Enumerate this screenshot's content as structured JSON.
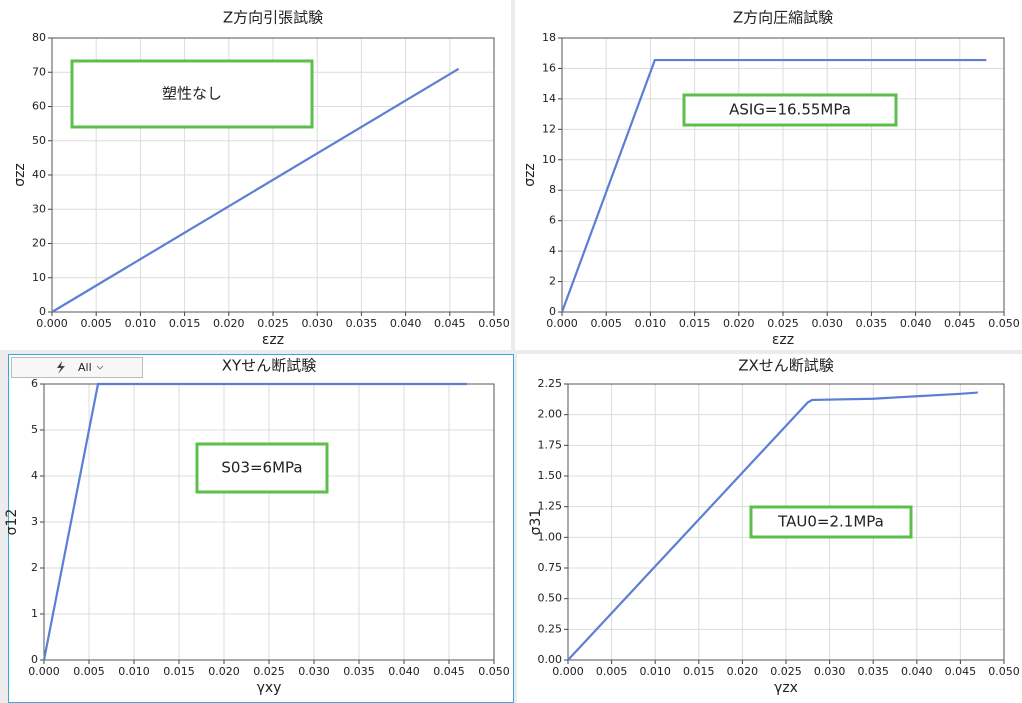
{
  "chart_data": [
    {
      "type": "line",
      "title": "Z方向引張試験",
      "x_label": "εzz",
      "y_label": "σzz",
      "color": "#5b7fd4",
      "grid": true,
      "x": [
        0,
        0.046
      ],
      "values": [
        0,
        71
      ],
      "xlim": [
        0,
        0.05
      ],
      "ylim": [
        0,
        80
      ],
      "xticks": [
        {
          "value": 0,
          "label": "0.000"
        },
        {
          "value": 0.005,
          "label": "0.005"
        },
        {
          "value": 0.01,
          "label": "0.010"
        },
        {
          "value": 0.015,
          "label": "0.015"
        },
        {
          "value": 0.02,
          "label": "0.020"
        },
        {
          "value": 0.025,
          "label": "0.025"
        },
        {
          "value": 0.03,
          "label": "0.030"
        },
        {
          "value": 0.035,
          "label": "0.035"
        },
        {
          "value": 0.04,
          "label": "0.040"
        },
        {
          "value": 0.045,
          "label": "0.045"
        },
        {
          "value": 0.05,
          "label": "0.050"
        }
      ],
      "yticks": [
        0,
        10,
        20,
        30,
        40,
        50,
        60,
        70,
        80
      ],
      "annotation": "塑性なし"
    },
    {
      "type": "line",
      "title": "Z方向圧縮試験",
      "x_label": "εzz",
      "y_label": "σzz",
      "color": "#5b7fd4",
      "grid": true,
      "x": [
        0,
        0.0105,
        0.048
      ],
      "values": [
        0,
        16.55,
        16.55
      ],
      "xlim": [
        0,
        0.05
      ],
      "ylim": [
        0,
        18
      ],
      "xticks": [
        {
          "value": 0,
          "label": "0.000"
        },
        {
          "value": 0.005,
          "label": "0.005"
        },
        {
          "value": 0.01,
          "label": "0.010"
        },
        {
          "value": 0.015,
          "label": "0.015"
        },
        {
          "value": 0.02,
          "label": "0.020"
        },
        {
          "value": 0.025,
          "label": "0.025"
        },
        {
          "value": 0.03,
          "label": "0.030"
        },
        {
          "value": 0.035,
          "label": "0.035"
        },
        {
          "value": 0.04,
          "label": "0.040"
        },
        {
          "value": 0.045,
          "label": "0.045"
        },
        {
          "value": 0.05,
          "label": "0.050"
        }
      ],
      "yticks": [
        0,
        2,
        4,
        6,
        8,
        10,
        12,
        14,
        16,
        18
      ],
      "annotation": "ASIG=16.55MPa"
    },
    {
      "type": "line",
      "title": "XYせん断試験",
      "x_label": "γxy",
      "y_label": "σ12",
      "color": "#5b7fd4",
      "grid": true,
      "x": [
        0,
        0.006,
        0.047
      ],
      "values": [
        0,
        6,
        6
      ],
      "xlim": [
        0,
        0.05
      ],
      "ylim": [
        0,
        6
      ],
      "xticks": [
        {
          "value": 0,
          "label": "0.000"
        },
        {
          "value": 0.005,
          "label": "0.005"
        },
        {
          "value": 0.01,
          "label": "0.010"
        },
        {
          "value": 0.015,
          "label": "0.015"
        },
        {
          "value": 0.02,
          "label": "0.020"
        },
        {
          "value": 0.025,
          "label": "0.025"
        },
        {
          "value": 0.03,
          "label": "0.030"
        },
        {
          "value": 0.035,
          "label": "0.035"
        },
        {
          "value": 0.04,
          "label": "0.040"
        },
        {
          "value": 0.045,
          "label": "0.045"
        },
        {
          "value": 0.05,
          "label": "0.050"
        }
      ],
      "yticks": [
        0,
        1,
        2,
        3,
        4,
        5,
        6
      ],
      "annotation": "S03=6MPa"
    },
    {
      "type": "line",
      "title": "ZXせん断試験",
      "x_label": "γzx",
      "y_label": "σ31",
      "color": "#5b7fd4",
      "grid": true,
      "x": [
        0,
        0.0275,
        0.028,
        0.035,
        0.04,
        0.045,
        0.047
      ],
      "values": [
        0,
        2.1,
        2.12,
        2.13,
        2.15,
        2.17,
        2.18
      ],
      "xlim": [
        0,
        0.05
      ],
      "ylim": [
        0,
        2.25
      ],
      "xticks": [
        {
          "value": 0,
          "label": "0.000"
        },
        {
          "value": 0.005,
          "label": "0.005"
        },
        {
          "value": 0.01,
          "label": "0.010"
        },
        {
          "value": 0.015,
          "label": "0.015"
        },
        {
          "value": 0.02,
          "label": "0.020"
        },
        {
          "value": 0.025,
          "label": "0.025"
        },
        {
          "value": 0.03,
          "label": "0.030"
        },
        {
          "value": 0.035,
          "label": "0.035"
        },
        {
          "value": 0.04,
          "label": "0.040"
        },
        {
          "value": 0.045,
          "label": "0.045"
        },
        {
          "value": 0.05,
          "label": "0.050"
        }
      ],
      "yticks": [
        {
          "value": 0,
          "label": "0.00"
        },
        {
          "value": 0.25,
          "label": "0.25"
        },
        {
          "value": 0.5,
          "label": "0.50"
        },
        {
          "value": 0.75,
          "label": "0.75"
        },
        {
          "value": 1,
          "label": "1.00"
        },
        {
          "value": 1.25,
          "label": "1.25"
        },
        {
          "value": 1.5,
          "label": "1.50"
        },
        {
          "value": 1.75,
          "label": "1.75"
        },
        {
          "value": 2,
          "label": "2.00"
        },
        {
          "value": 2.25,
          "label": "2.25"
        }
      ],
      "annotation": "TAU0=2.1MPa"
    }
  ],
  "toolbar": {
    "label": "All"
  }
}
